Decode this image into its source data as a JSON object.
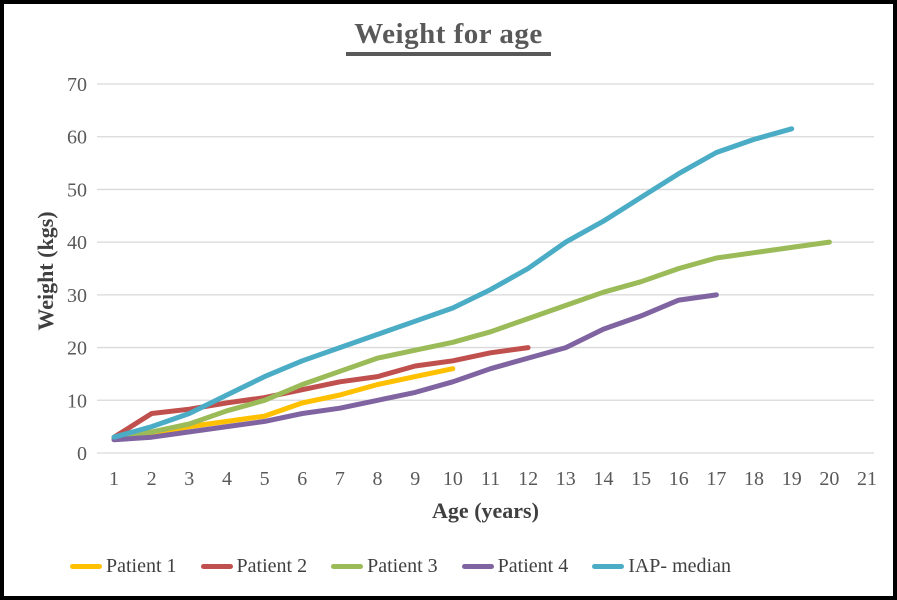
{
  "chart": {
    "title": "Weight for age",
    "xlabel": "Age (years)",
    "ylabel": "Weight (kgs)"
  },
  "chart_data": {
    "type": "line",
    "title": "Weight for age",
    "xlabel": "Age (years)",
    "ylabel": "Weight (kgs)",
    "xlim": [
      1,
      21
    ],
    "ylim": [
      0,
      70
    ],
    "x_ticks": [
      1,
      2,
      3,
      4,
      5,
      6,
      7,
      8,
      9,
      10,
      11,
      12,
      13,
      14,
      15,
      16,
      17,
      18,
      19,
      20,
      21
    ],
    "y_ticks": [
      0,
      10,
      20,
      30,
      40,
      50,
      60,
      70
    ],
    "grid": "horizontal-only",
    "gridline_color": "#d9d9d9",
    "tick_label_color": "#595959",
    "legend_position": "bottom",
    "series": [
      {
        "name": "Patient 1",
        "color": "#FFC000",
        "x": [
          1,
          2,
          3,
          4,
          5,
          6,
          7,
          8,
          9,
          10
        ],
        "values": [
          2.8,
          3.5,
          5,
          6,
          7,
          9.5,
          11,
          13,
          14.5,
          16
        ]
      },
      {
        "name": "Patient 2",
        "color": "#C0504D",
        "x": [
          1,
          2,
          3,
          4,
          5,
          6,
          7,
          8,
          9,
          10,
          11,
          12
        ],
        "values": [
          3,
          7.5,
          8.3,
          9.5,
          10.5,
          12,
          13.5,
          14.5,
          16.5,
          17.5,
          19,
          20
        ]
      },
      {
        "name": "Patient 3",
        "color": "#9BBB59",
        "x": [
          1,
          2,
          3,
          4,
          5,
          6,
          7,
          8,
          9,
          10,
          11,
          12,
          13,
          14,
          15,
          16,
          17,
          18,
          19,
          20
        ],
        "values": [
          3,
          4,
          5.5,
          8,
          10,
          13,
          15.5,
          18,
          19.5,
          21,
          23,
          25.5,
          28,
          30.5,
          32.5,
          35,
          37,
          38,
          39,
          40
        ]
      },
      {
        "name": "Patient 4",
        "color": "#8064A2",
        "x": [
          1,
          2,
          3,
          4,
          5,
          6,
          7,
          8,
          9,
          10,
          11,
          12,
          13,
          14,
          15,
          16,
          17
        ],
        "values": [
          2.5,
          3,
          4,
          5,
          6,
          7.5,
          8.5,
          10,
          11.5,
          13.5,
          16,
          18,
          20,
          23.5,
          26,
          29,
          30
        ]
      },
      {
        "name": "IAP- median",
        "color": "#4BACC6",
        "x": [
          1,
          2,
          3,
          4,
          5,
          6,
          7,
          8,
          9,
          10,
          11,
          12,
          13,
          14,
          15,
          16,
          17,
          18,
          19
        ],
        "values": [
          3,
          5,
          7.5,
          11,
          14.5,
          17.5,
          20,
          22.5,
          25,
          27.5,
          31,
          35,
          40,
          44,
          48.5,
          53,
          57,
          59.5,
          61.5
        ]
      }
    ]
  }
}
